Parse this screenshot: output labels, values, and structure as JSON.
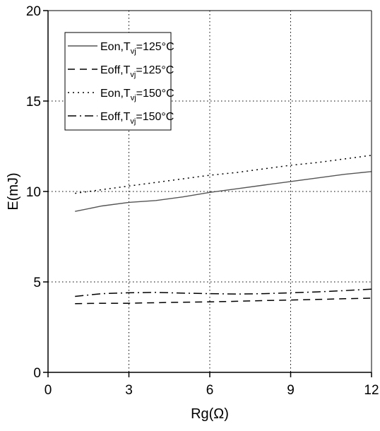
{
  "chart_data": {
    "type": "line",
    "xlabel": "Rg(Ω)",
    "ylabel": "E(mJ)",
    "xlim": [
      0,
      12
    ],
    "ylim": [
      0,
      20
    ],
    "x_ticks": [
      0,
      3,
      6,
      9,
      12
    ],
    "y_ticks": [
      0,
      5,
      10,
      15,
      20
    ],
    "grid": true,
    "legend_position": "top-left",
    "series": [
      {
        "name": "Eon,Tvj=125°C",
        "label_parts": [
          "Eon,T",
          "vj",
          "=125°C"
        ],
        "style": "solid",
        "color": "#555555",
        "x": [
          1,
          2,
          3,
          4,
          5,
          6,
          7,
          8,
          9,
          10,
          11,
          12
        ],
        "y": [
          8.9,
          9.2,
          9.4,
          9.5,
          9.7,
          9.95,
          10.15,
          10.35,
          10.55,
          10.75,
          10.95,
          11.1
        ]
      },
      {
        "name": "Eoff,Tvj=125°C",
        "label_parts": [
          "Eoff,T",
          "vj",
          "=125°C"
        ],
        "style": "dashed",
        "color": "#000000",
        "x": [
          1,
          2,
          3,
          4,
          5,
          6,
          7,
          8,
          9,
          10,
          11,
          12
        ],
        "y": [
          3.8,
          3.82,
          3.82,
          3.85,
          3.88,
          3.9,
          3.93,
          3.97,
          4.0,
          4.03,
          4.07,
          4.1
        ]
      },
      {
        "name": "Eon,Tvj=150°C",
        "label_parts": [
          "Eon,T",
          "vj",
          "=150°C"
        ],
        "style": "dotted",
        "color": "#000000",
        "x": [
          1,
          2,
          3,
          4,
          5,
          6,
          7,
          8,
          9,
          10,
          11,
          12
        ],
        "y": [
          9.9,
          10.1,
          10.3,
          10.5,
          10.7,
          10.9,
          11.05,
          11.25,
          11.45,
          11.6,
          11.8,
          12.0
        ]
      },
      {
        "name": "Eoff,Tvj=150°C",
        "label_parts": [
          "Eoff,T",
          "vj",
          "=150°C"
        ],
        "style": "dashdot",
        "color": "#000000",
        "x": [
          1,
          2,
          3,
          4,
          5,
          6,
          7,
          8,
          9,
          10,
          11,
          12
        ],
        "y": [
          4.2,
          4.35,
          4.4,
          4.42,
          4.38,
          4.35,
          4.33,
          4.35,
          4.4,
          4.45,
          4.52,
          4.6
        ]
      }
    ]
  }
}
